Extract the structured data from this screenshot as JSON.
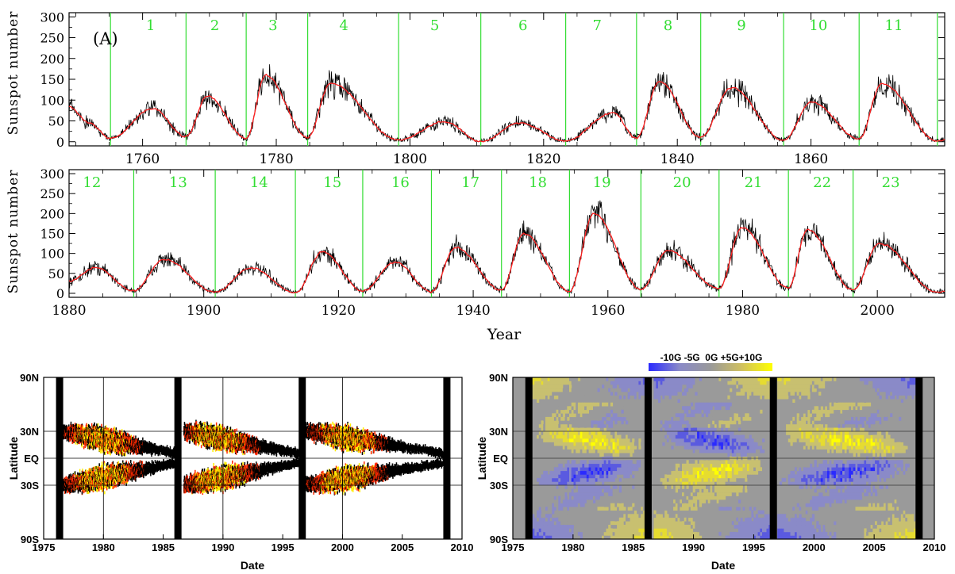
{
  "top_panel": {
    "panel_label": "(A)",
    "ylabel": "Sunspot number",
    "xlabel": "Year"
  },
  "bottom_left": {
    "ylabel": "Latitude",
    "xlabel": "Date"
  },
  "bottom_right": {
    "ylabel": "Latitude",
    "xlabel": "Date",
    "colorbar_label": "-10G -5G  0G +5G+10G",
    "colorbar_colors": [
      "#2a2aff",
      "#8a8ac8",
      "#9a9a9a",
      "#d0c060",
      "#ffff00"
    ]
  },
  "colors": {
    "cycle_line": "#33dd33",
    "cycle_number": "#33dd33",
    "smoothed_line": "#ff2020",
    "monthly_line": "#000000",
    "butterfly_low": "#000000",
    "butterfly_mid": "#ff2a00",
    "butterfly_high": "#ffee00",
    "magnetic_positive": "#ffff00",
    "magnetic_negative": "#2a2aff",
    "magnetic_neutral": "#9a9a9a"
  },
  "chart_data": [
    {
      "type": "line",
      "panel": "sunspot-upper",
      "xlim": [
        1749,
        1880
      ],
      "ylim": [
        -10,
        310
      ],
      "xticks": [
        "1760",
        "1780",
        "1800",
        "1820",
        "1840",
        "1860"
      ],
      "yticks": [
        "0",
        "50",
        "100",
        "150",
        "200",
        "250",
        "300"
      ],
      "ylabel": "Sunspot number",
      "cycle_boundaries": [
        1755.2,
        1766.5,
        1775.5,
        1784.7,
        1798.3,
        1810.6,
        1823.3,
        1833.9,
        1843.5,
        1855.9,
        1867.2,
        1878.9
      ],
      "cycle_labels": [
        "1",
        "2",
        "3",
        "4",
        "5",
        "6",
        "7",
        "8",
        "9",
        "10",
        "11"
      ],
      "series": [
        {
          "name": "",
          "x": [
            1749,
            1752,
            1755.2,
            1761.5,
            1766.5,
            1769.7,
            1775.5,
            1778.4,
            1784.7,
            1788.1,
            1798.3,
            1805.2,
            1810.6,
            1816.4,
            1823.3,
            1830.4,
            1833.9,
            1837.3,
            1843.5,
            1848.1,
            1855.9,
            1860.1,
            1867.2,
            1870.6,
            1878.9,
            1880
          ],
          "y": [
            85,
            45,
            8,
            80,
            12,
            110,
            8,
            160,
            10,
            140,
            4,
            48,
            0,
            45,
            2,
            70,
            8,
            145,
            10,
            130,
            3,
            95,
            7,
            140,
            2,
            5
          ]
        }
      ]
    },
    {
      "type": "line",
      "panel": "sunspot-lower",
      "xlim": [
        1880,
        2010
      ],
      "ylim": [
        -10,
        310
      ],
      "xticks": [
        "1880",
        "1900",
        "1920",
        "1940",
        "1960",
        "1980",
        "2000"
      ],
      "yticks": [
        "0",
        "50",
        "100",
        "150",
        "200",
        "250",
        "300"
      ],
      "xlabel": "Year",
      "ylabel": "Sunspot number",
      "cycle_boundaries": [
        1889.6,
        1901.7,
        1913.6,
        1923.6,
        1933.8,
        1944.2,
        1954.3,
        1964.9,
        1976.5,
        1986.8,
        1996.4
      ],
      "cycle_labels": [
        "12",
        "13",
        "14",
        "15",
        "16",
        "17",
        "18",
        "19",
        "20",
        "21",
        "22",
        "23"
      ],
      "series": [
        {
          "name": "",
          "x": [
            1880,
            1883.9,
            1889.6,
            1894.1,
            1901.7,
            1907.0,
            1913.6,
            1917.6,
            1923.6,
            1928.4,
            1933.8,
            1937.4,
            1944.2,
            1947.5,
            1954.3,
            1957.9,
            1964.9,
            1968.9,
            1976.5,
            1979.9,
            1986.8,
            1989.6,
            1996.4,
            2000.3,
            2009,
            2010
          ],
          "y": [
            30,
            65,
            6,
            85,
            3,
            64,
            1,
            104,
            6,
            78,
            4,
            115,
            8,
            150,
            4,
            200,
            10,
            107,
            12,
            165,
            13,
            160,
            9,
            125,
            2,
            5
          ]
        }
      ]
    },
    {
      "type": "heatmap",
      "panel": "butterfly-diagram",
      "xlabel": "Date",
      "ylabel": "Latitude",
      "xlim": [
        1975,
        2010
      ],
      "ylim": [
        -90,
        90
      ],
      "xticks": [
        "1975",
        "1980",
        "1985",
        "1990",
        "1995",
        "2000",
        "2005",
        "2010"
      ],
      "yticks": [
        "90S",
        "30S",
        "EQ",
        "30N",
        "90N"
      ],
      "ytick_values": [
        -90,
        -30,
        0,
        30,
        90
      ],
      "gridlines_y": [
        -30,
        0,
        30
      ],
      "data_gaps": [
        1976.3,
        1986.2,
        1996.6,
        2008.7
      ],
      "wings": [
        {
          "start": 1976.5,
          "end": 1986.2,
          "lat_start": 30,
          "lat_end": 5,
          "peak": 1979.9
        },
        {
          "start": 1976.5,
          "end": 1986.2,
          "lat_start": -30,
          "lat_end": -5,
          "peak": 1979.9
        },
        {
          "start": 1986.7,
          "end": 1996.4,
          "lat_start": 30,
          "lat_end": 5,
          "peak": 1989.6
        },
        {
          "start": 1986.7,
          "end": 1996.4,
          "lat_start": -30,
          "lat_end": -5,
          "peak": 1989.6
        },
        {
          "start": 1996.8,
          "end": 2008.5,
          "lat_start": 30,
          "lat_end": 5,
          "peak": 2000.3
        },
        {
          "start": 1996.8,
          "end": 2008.5,
          "lat_start": -30,
          "lat_end": -5,
          "peak": 2000.3
        }
      ]
    },
    {
      "type": "heatmap",
      "panel": "magnetic-butterfly",
      "xlabel": "Date",
      "ylabel": "Latitude",
      "xlim": [
        1975,
        2010
      ],
      "ylim": [
        -90,
        90
      ],
      "xticks": [
        "1975",
        "1980",
        "1985",
        "1990",
        "1995",
        "2000",
        "2005",
        "2010"
      ],
      "yticks": [
        "90S",
        "30S",
        "EQ",
        "30N",
        "90N"
      ],
      "ytick_values": [
        -90,
        -30,
        0,
        30,
        90
      ],
      "gridlines_y": [
        -30,
        0,
        30
      ],
      "data_gaps": [
        1976.3,
        1986.2,
        1996.6,
        2008.7
      ],
      "colorbar_range": [
        -10,
        10
      ],
      "colorbar_unit": "G"
    }
  ]
}
